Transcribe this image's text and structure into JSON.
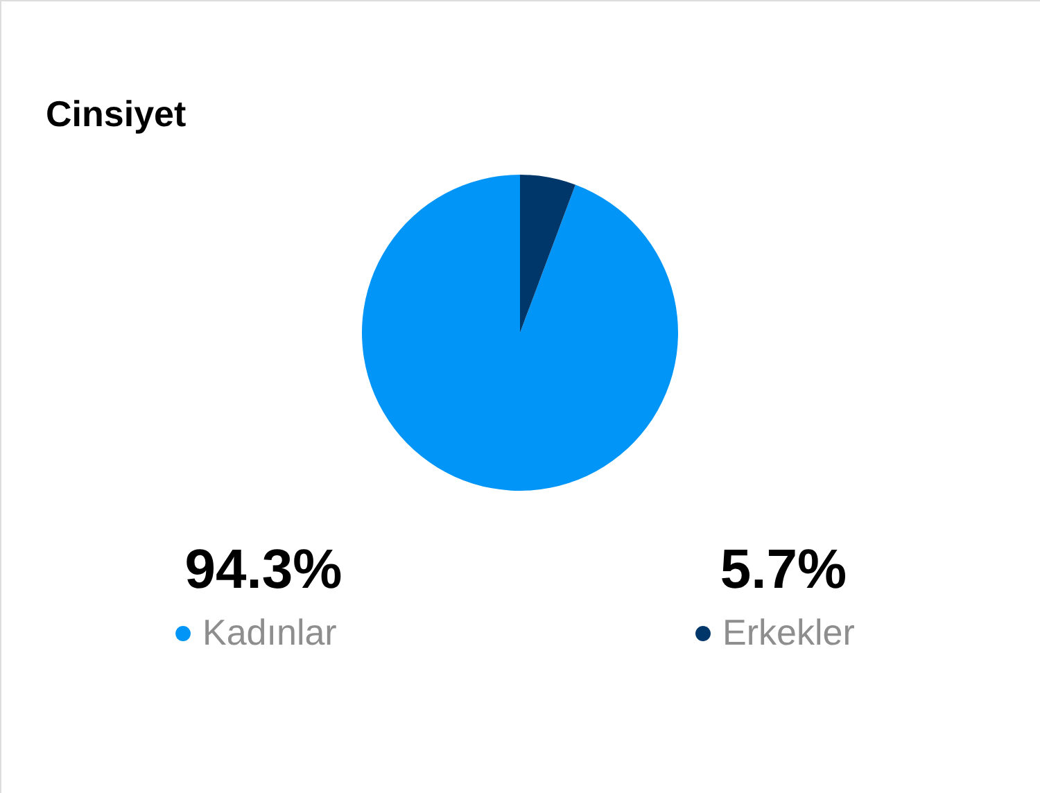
{
  "chart_data": {
    "type": "pie",
    "title": "Cinsiyet",
    "categories": [
      "Kadınlar",
      "Erkekler"
    ],
    "values": [
      94.3,
      5.7
    ],
    "colors": [
      "#0095f6",
      "#00376b"
    ],
    "value_labels": [
      "94.3%",
      "5.7%"
    ],
    "legend": "bottom"
  }
}
